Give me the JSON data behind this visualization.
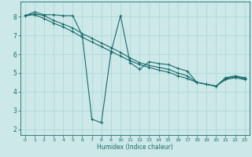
{
  "xlabel": "Humidex (Indice chaleur)",
  "background_color": "#cce8e8",
  "line_color": "#1a6b6b",
  "grid_color": "#aad4d4",
  "xlim": [
    -0.5,
    23.5
  ],
  "ylim": [
    1.7,
    8.8
  ],
  "xticks": [
    0,
    1,
    2,
    3,
    4,
    5,
    6,
    7,
    8,
    9,
    10,
    11,
    12,
    13,
    14,
    15,
    16,
    17,
    18,
    19,
    20,
    21,
    22,
    23
  ],
  "yticks": [
    2,
    3,
    4,
    5,
    6,
    7,
    8
  ],
  "line1_x": [
    0,
    1,
    2,
    3,
    4,
    5,
    6,
    7,
    8,
    9,
    10,
    11,
    12,
    13,
    14,
    15,
    16,
    17,
    18,
    19,
    20,
    21,
    22,
    23
  ],
  "line1_y": [
    8.05,
    8.25,
    8.1,
    8.1,
    8.05,
    8.05,
    7.0,
    2.55,
    2.35,
    6.1,
    8.05,
    5.55,
    5.2,
    5.6,
    5.5,
    5.45,
    5.25,
    5.1,
    4.5,
    4.4,
    4.3,
    4.75,
    4.85,
    4.75
  ],
  "line2_x": [
    0,
    1,
    2,
    3,
    4,
    5,
    6,
    7,
    8,
    9,
    10,
    11,
    12,
    13,
    14,
    15,
    16,
    17,
    18,
    19,
    20,
    21,
    22,
    23
  ],
  "line2_y": [
    8.05,
    8.15,
    8.05,
    7.8,
    7.6,
    7.4,
    7.1,
    6.85,
    6.6,
    6.35,
    6.1,
    5.8,
    5.55,
    5.4,
    5.3,
    5.2,
    5.0,
    4.85,
    4.5,
    4.4,
    4.3,
    4.7,
    4.8,
    4.7
  ],
  "line3_x": [
    0,
    1,
    2,
    3,
    4,
    5,
    6,
    7,
    8,
    9,
    10,
    11,
    12,
    13,
    14,
    15,
    16,
    17,
    18,
    19,
    20,
    21,
    22,
    23
  ],
  "line3_y": [
    8.05,
    8.1,
    7.9,
    7.65,
    7.45,
    7.2,
    6.9,
    6.65,
    6.4,
    6.15,
    5.9,
    5.65,
    5.45,
    5.3,
    5.15,
    5.05,
    4.85,
    4.7,
    4.5,
    4.4,
    4.3,
    4.65,
    4.75,
    4.65
  ]
}
